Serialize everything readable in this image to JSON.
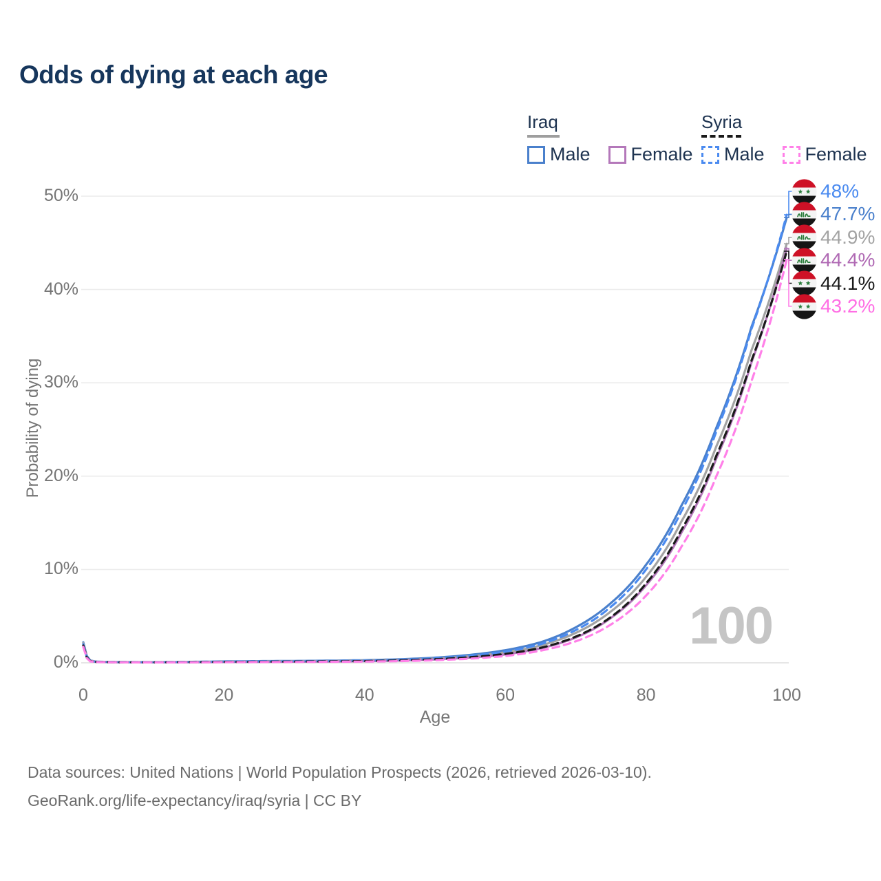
{
  "title": "Odds of dying at each age",
  "watermark": "100",
  "y_axis": {
    "label": "Probability of dying",
    "ticks": [
      "0%",
      "10%",
      "20%",
      "30%",
      "40%",
      "50%"
    ],
    "tick_values": [
      0,
      10,
      20,
      30,
      40,
      50
    ]
  },
  "x_axis": {
    "label": "Age",
    "ticks": [
      "0",
      "20",
      "40",
      "60",
      "80",
      "100"
    ],
    "tick_values": [
      0,
      20,
      40,
      60,
      80,
      100
    ]
  },
  "legend": {
    "groups": [
      {
        "country": "Iraq",
        "line_style": "solid",
        "line_color": "#9e9e9e",
        "items": [
          {
            "label": "Male",
            "color": "#4a80cc",
            "dashed": false
          },
          {
            "label": "Female",
            "color": "#b478ba",
            "dashed": false
          }
        ]
      },
      {
        "country": "Syria",
        "line_style": "dashed",
        "line_color": "#1a1a1a",
        "items": [
          {
            "label": "Male",
            "color": "#4b8bf0",
            "dashed": true
          },
          {
            "label": "Female",
            "color": "#ff80e8",
            "dashed": true
          }
        ]
      }
    ]
  },
  "footer": {
    "line1": "Data sources: United Nations | World Population Prospects (2026, retrieved 2026-03-10).",
    "line2": "GeoRank.org/life-expectancy/iraq/syria | CC BY"
  },
  "colors": {
    "title": "#16365c",
    "axis_text": "#757575",
    "gridline": "#ececec",
    "baseline": "#dddddd",
    "watermark": "#c5c5c5",
    "flag_red": "#ce1126",
    "flag_white": "#f4f4f4",
    "flag_black": "#151515",
    "flag_green": "#2a7d3b"
  },
  "chart_data": {
    "type": "line",
    "title": "Odds of dying at each age",
    "xlabel": "Age",
    "ylabel": "Probability of dying",
    "xlim": [
      0,
      100
    ],
    "ylim_pct": [
      0,
      50
    ],
    "grid": "horizontal",
    "legend_position": "top-right",
    "x_anchor_ages": [
      0,
      1,
      2,
      5,
      10,
      15,
      20,
      25,
      30,
      35,
      40,
      45,
      50,
      55,
      60,
      65,
      70,
      75,
      80,
      85,
      90,
      95,
      100
    ],
    "series": [
      {
        "name": "Iraq Male",
        "country": "iraq",
        "flag": "iraq",
        "color": "#4a80cc",
        "dashed": false,
        "end_label": "48%",
        "label_color": "#4a80cc",
        "values_pct": [
          2.2,
          0.25,
          0.12,
          0.08,
          0.07,
          0.1,
          0.15,
          0.18,
          0.2,
          0.23,
          0.28,
          0.38,
          0.55,
          0.85,
          1.35,
          2.2,
          3.8,
          6.4,
          10.5,
          16.8,
          25.2,
          36.0,
          47.7
        ]
      },
      {
        "name": "Iraq",
        "country": "iraq",
        "flag": "iraq",
        "color": "#a3a3a3",
        "dashed": false,
        "end_label": "44.9%",
        "label_color": "#a3a3a3",
        "values_pct": [
          2.1,
          0.22,
          0.11,
          0.07,
          0.06,
          0.08,
          0.12,
          0.14,
          0.16,
          0.18,
          0.23,
          0.31,
          0.46,
          0.7,
          1.12,
          1.85,
          3.2,
          5.5,
          9.2,
          15.1,
          23.2,
          33.5,
          44.9
        ]
      },
      {
        "name": "Iraq Female",
        "country": "iraq",
        "flag": "iraq",
        "color": "#b478ba",
        "dashed": false,
        "end_label": "44.4%",
        "label_color": "#b06ab4",
        "values_pct": [
          1.9,
          0.2,
          0.1,
          0.06,
          0.05,
          0.06,
          0.08,
          0.1,
          0.12,
          0.14,
          0.17,
          0.24,
          0.36,
          0.56,
          0.9,
          1.55,
          2.7,
          4.8,
          8.3,
          13.9,
          21.9,
          32.2,
          44.4
        ]
      },
      {
        "name": "Syria Male",
        "country": "syria",
        "flag": "syria",
        "color": "#4b8bf0",
        "dashed": true,
        "end_label": "48%",
        "label_color": "#4b8bf0",
        "values_pct": [
          2.0,
          0.2,
          0.1,
          0.07,
          0.06,
          0.09,
          0.13,
          0.15,
          0.17,
          0.19,
          0.23,
          0.32,
          0.48,
          0.75,
          1.2,
          2.0,
          3.5,
          6.0,
          10.0,
          16.2,
          24.8,
          35.8,
          48.0
        ]
      },
      {
        "name": "Syria",
        "country": "syria",
        "flag": "syria",
        "color": "#1a1a1a",
        "dashed": true,
        "end_label": "44.1%",
        "label_color": "#1a1a1a",
        "values_pct": [
          1.85,
          0.18,
          0.09,
          0.06,
          0.05,
          0.07,
          0.1,
          0.11,
          0.13,
          0.15,
          0.18,
          0.25,
          0.38,
          0.6,
          0.95,
          1.6,
          2.8,
          4.9,
          8.5,
          14.2,
          22.2,
          32.4,
          44.1
        ]
      },
      {
        "name": "Syria Female",
        "country": "syria",
        "flag": "syria",
        "color": "#ff80e8",
        "dashed": true,
        "end_label": "43.2%",
        "label_color": "#ff6ee4",
        "values_pct": [
          1.7,
          0.15,
          0.08,
          0.05,
          0.04,
          0.05,
          0.07,
          0.08,
          0.09,
          0.11,
          0.13,
          0.18,
          0.28,
          0.45,
          0.73,
          1.3,
          2.3,
          4.1,
          7.2,
          12.4,
          20.0,
          30.2,
          43.2
        ]
      }
    ],
    "end_labels_order": [
      "48%",
      "47.7%",
      "44.9%",
      "44.4%",
      "44.1%",
      "43.2%"
    ]
  },
  "end_label_overrides": {
    "Iraq Male": "47.7%"
  }
}
